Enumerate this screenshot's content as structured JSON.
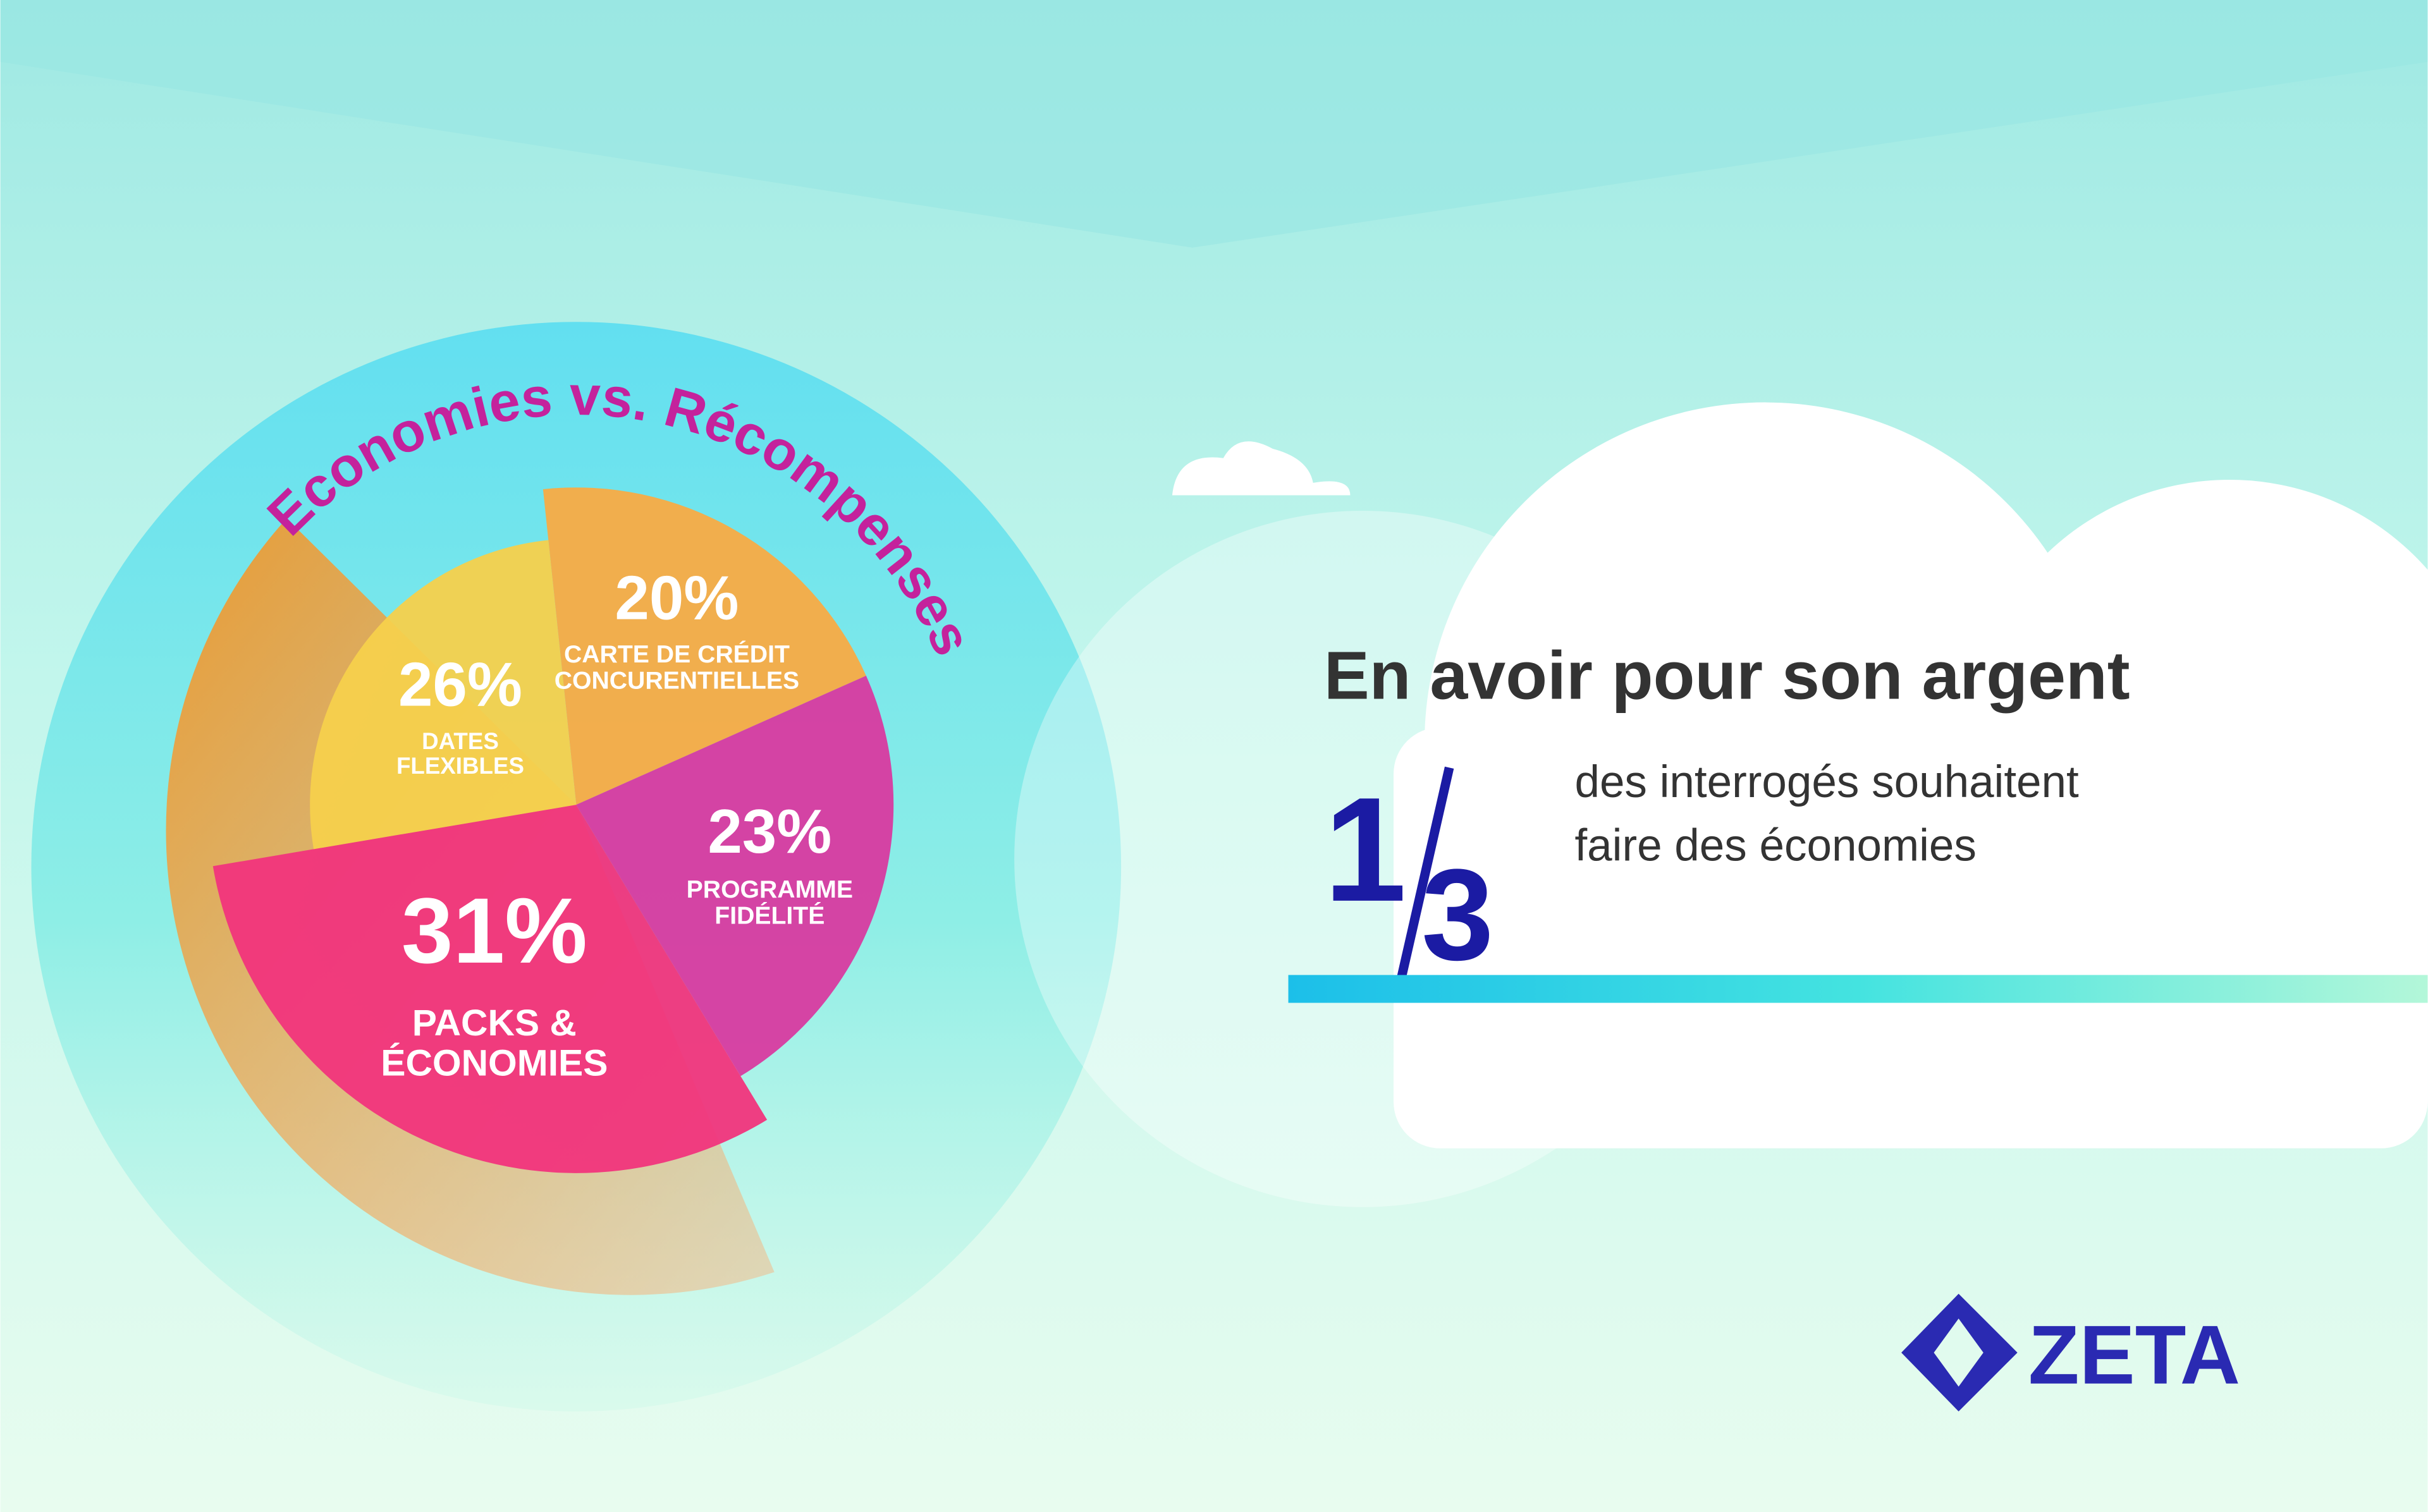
{
  "chart_data": {
    "type": "pie",
    "title": "Economies vs. Récompenses",
    "categories": [
      "CARTE DE CRÉDIT CONCURENTIELLES",
      "PROGRAMME FIDÉLITÉ",
      "PACKS & ÉCONOMIES",
      "DATES FLEXIBLES"
    ],
    "values": [
      20,
      23,
      31,
      26
    ],
    "value_labels": [
      "20%",
      "23%",
      "31%",
      "26%"
    ],
    "colors": [
      "#f8ab45",
      "#d83aa0",
      "#f1347c",
      "#f5d04c"
    ]
  },
  "callout": {
    "heading": "En avoir pour son argent",
    "numerator": "1",
    "denominator": "3",
    "text": "des interrogés souhaitent faire des économies"
  },
  "logo": {
    "text": "ZETA"
  }
}
